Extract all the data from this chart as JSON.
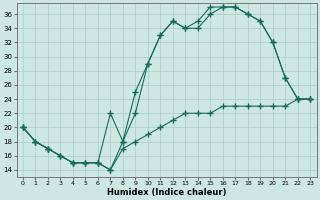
{
  "xlabel": "Humidex (Indice chaleur)",
  "bg_color": "#cce8e0",
  "grid_color": "#aaccc4",
  "line_color": "#1a6b5a",
  "xlim": [
    -0.5,
    23.5
  ],
  "ylim": [
    13.0,
    37.5
  ],
  "xticks": [
    0,
    1,
    2,
    3,
    4,
    5,
    6,
    7,
    8,
    9,
    10,
    11,
    12,
    13,
    14,
    15,
    16,
    17,
    18,
    19,
    20,
    21,
    22,
    23
  ],
  "yticks": [
    14,
    16,
    18,
    20,
    22,
    24,
    26,
    28,
    30,
    32,
    34,
    36
  ],
  "curve1_x": [
    0,
    1,
    2,
    3,
    4,
    5,
    6,
    7,
    8,
    9,
    10,
    11,
    12,
    13,
    14,
    15,
    16,
    17,
    18,
    19,
    20,
    21,
    22,
    23
  ],
  "curve1_y": [
    20,
    18,
    17,
    16,
    15,
    15,
    15,
    14,
    18,
    22,
    29,
    33,
    35,
    34,
    35,
    37,
    37,
    37,
    36,
    35,
    32,
    27,
    24,
    24
  ],
  "curve2_x": [
    0,
    1,
    2,
    3,
    4,
    5,
    6,
    7,
    8,
    9,
    10,
    11,
    12,
    13,
    14,
    15,
    16,
    17,
    18,
    19,
    20,
    21,
    22,
    23
  ],
  "curve2_y": [
    20,
    18,
    17,
    16,
    15,
    15,
    15,
    22,
    18,
    25,
    29,
    33,
    35,
    34,
    34,
    36,
    37,
    37,
    36,
    35,
    32,
    27,
    24,
    24
  ],
  "curve3_x": [
    0,
    1,
    2,
    3,
    4,
    5,
    6,
    7,
    8,
    9,
    10,
    11,
    12,
    13,
    14,
    15,
    16,
    17,
    18,
    19,
    20,
    21,
    22,
    23
  ],
  "curve3_y": [
    20,
    18,
    17,
    16,
    15,
    15,
    15,
    14,
    17,
    18,
    19,
    20,
    21,
    22,
    22,
    22,
    23,
    23,
    23,
    23,
    23,
    23,
    24,
    24
  ]
}
